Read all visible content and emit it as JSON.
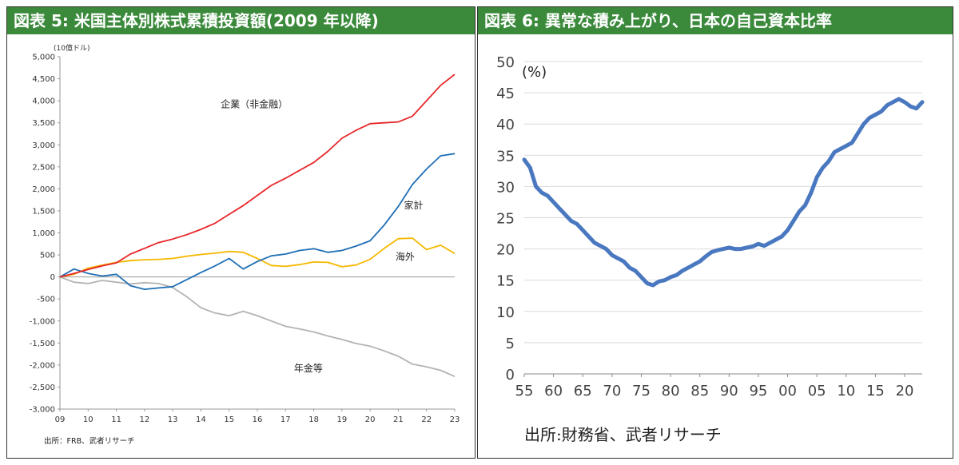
{
  "headers": {
    "left": "図表 5: 米国主体別株式累積投資額(2009 年以降)",
    "right": "図表 6: 異常な積み上がり、日本の自己資本比率"
  },
  "sources": {
    "left": "出所：FRB、武者リサーチ",
    "right": "出所:財務省、武者リサーチ"
  },
  "chart_data": [
    {
      "type": "line",
      "unit_label": "(10億ドル)",
      "ylim": [
        -3000,
        5000
      ],
      "yticks": [
        5000,
        4500,
        4000,
        3500,
        3000,
        2500,
        2000,
        1500,
        1000,
        500,
        0,
        -500,
        -1000,
        -1500,
        -2000,
        -2500,
        -3000
      ],
      "ytick_labels": [
        "5,000",
        "4,500",
        "4,000",
        "3,500",
        "3,000",
        "2,500",
        "2,000",
        "1,500",
        "1,000",
        "500",
        "0",
        "-500",
        "-1,000",
        "-1,500",
        "-2,000",
        "-2,500",
        "-3,000"
      ],
      "xlim": [
        2009,
        2023
      ],
      "xticks": [
        2009,
        2010,
        2011,
        2012,
        2013,
        2014,
        2015,
        2016,
        2017,
        2018,
        2019,
        2020,
        2021,
        2022,
        2023
      ],
      "xtick_labels": [
        "09",
        "10",
        "11",
        "12",
        "13",
        "14",
        "15",
        "16",
        "17",
        "18",
        "19",
        "20",
        "21",
        "22",
        "23"
      ],
      "grid": false,
      "series": [
        {
          "name": "企業（非金融）",
          "color": "#e8262a",
          "x": [
            2009,
            2009.5,
            2010,
            2010.5,
            2011,
            2011.5,
            2012,
            2012.5,
            2013,
            2013.5,
            2014,
            2014.5,
            2015,
            2015.5,
            2016,
            2016.5,
            2017,
            2017.5,
            2018,
            2018.5,
            2019,
            2019.5,
            2020,
            2020.5,
            2021,
            2021.5,
            2022,
            2022.5,
            2023
          ],
          "values": [
            0,
            80,
            170,
            250,
            320,
            520,
            650,
            780,
            860,
            960,
            1080,
            1220,
            1420,
            1620,
            1850,
            2080,
            2240,
            2420,
            2600,
            2850,
            3150,
            3330,
            3480,
            3500,
            3520,
            3650,
            4000,
            4350,
            4600
          ]
        },
        {
          "name": "家計",
          "color": "#1f6fb5",
          "x": [
            2009,
            2009.5,
            2010,
            2010.5,
            2011,
            2011.5,
            2012,
            2012.5,
            2013,
            2013.5,
            2014,
            2014.5,
            2015,
            2015.5,
            2016,
            2016.5,
            2017,
            2017.5,
            2018,
            2018.5,
            2019,
            2019.5,
            2020,
            2020.5,
            2021,
            2021.5,
            2022,
            2022.5,
            2023
          ],
          "values": [
            0,
            180,
            80,
            20,
            60,
            -200,
            -280,
            -250,
            -220,
            -60,
            100,
            250,
            420,
            180,
            350,
            480,
            520,
            600,
            640,
            560,
            600,
            700,
            820,
            1180,
            1600,
            2100,
            2450,
            2750,
            2800
          ]
        },
        {
          "name": "海外",
          "color": "#f5b800",
          "x": [
            2009,
            2009.5,
            2010,
            2010.5,
            2011,
            2011.5,
            2012,
            2012.5,
            2013,
            2013.5,
            2014,
            2014.5,
            2015,
            2015.5,
            2016,
            2016.5,
            2017,
            2017.5,
            2018,
            2018.5,
            2019,
            2019.5,
            2020,
            2020.5,
            2021,
            2021.5,
            2022,
            2022.5,
            2023
          ],
          "values": [
            0,
            60,
            200,
            270,
            330,
            370,
            390,
            400,
            420,
            470,
            510,
            540,
            580,
            560,
            420,
            260,
            240,
            280,
            340,
            330,
            230,
            270,
            400,
            650,
            870,
            880,
            620,
            720,
            530
          ]
        },
        {
          "name": "年金等",
          "color": "#b3b3b3",
          "x": [
            2009,
            2009.5,
            2010,
            2010.5,
            2011,
            2011.5,
            2012,
            2012.5,
            2013,
            2013.5,
            2014,
            2014.5,
            2015,
            2015.5,
            2016,
            2016.5,
            2017,
            2017.5,
            2018,
            2018.5,
            2019,
            2019.5,
            2020,
            2020.5,
            2021,
            2021.5,
            2022,
            2022.5,
            2023
          ],
          "values": [
            0,
            -120,
            -150,
            -80,
            -120,
            -160,
            -130,
            -150,
            -240,
            -450,
            -700,
            -820,
            -880,
            -780,
            -880,
            -1000,
            -1120,
            -1180,
            -1250,
            -1340,
            -1420,
            -1510,
            -1570,
            -1680,
            -1800,
            -1980,
            -2040,
            -2120,
            -2260
          ]
        }
      ]
    },
    {
      "type": "line",
      "unit_label": "(%)",
      "ylim": [
        0,
        50
      ],
      "yticks": [
        0,
        5,
        10,
        15,
        20,
        25,
        30,
        35,
        40,
        45,
        50
      ],
      "ytick_labels": [
        "0",
        "5",
        "10",
        "15",
        "20",
        "25",
        "30",
        "35",
        "40",
        "45",
        "50"
      ],
      "xlim": [
        1955,
        2023
      ],
      "xticks": [
        1955,
        1960,
        1965,
        1970,
        1975,
        1980,
        1985,
        1990,
        1995,
        2000,
        2005,
        2010,
        2015,
        2020
      ],
      "xtick_labels": [
        "55",
        "60",
        "65",
        "70",
        "75",
        "80",
        "85",
        "90",
        "95",
        "00",
        "05",
        "10",
        "15",
        "20"
      ],
      "grid": true,
      "series": [
        {
          "name": "",
          "color": "#4a78c0",
          "x": [
            1955,
            1956,
            1957,
            1958,
            1959,
            1960,
            1961,
            1962,
            1963,
            1964,
            1965,
            1966,
            1967,
            1968,
            1969,
            1970,
            1971,
            1972,
            1973,
            1974,
            1975,
            1976,
            1977,
            1978,
            1979,
            1980,
            1981,
            1982,
            1983,
            1984,
            1985,
            1986,
            1987,
            1988,
            1989,
            1990,
            1991,
            1992,
            1993,
            1994,
            1995,
            1996,
            1997,
            1998,
            1999,
            2000,
            2001,
            2002,
            2003,
            2004,
            2005,
            2006,
            2007,
            2008,
            2009,
            2010,
            2011,
            2012,
            2013,
            2014,
            2015,
            2016,
            2017,
            2018,
            2019,
            2020,
            2021,
            2022,
            2023
          ],
          "values": [
            34.3,
            33.0,
            30.0,
            29.0,
            28.5,
            27.5,
            26.5,
            25.5,
            24.5,
            24.0,
            23.0,
            22.0,
            21.0,
            20.5,
            20.0,
            19.0,
            18.5,
            18.0,
            17.0,
            16.5,
            15.5,
            14.5,
            14.2,
            14.8,
            15.0,
            15.5,
            15.8,
            16.5,
            17.0,
            17.5,
            18.0,
            18.8,
            19.5,
            19.8,
            20.0,
            20.2,
            20.0,
            20.0,
            20.2,
            20.4,
            20.8,
            20.5,
            21.0,
            21.5,
            22.0,
            23.0,
            24.5,
            26.0,
            27.0,
            29.0,
            31.5,
            33.0,
            34.0,
            35.5,
            36.0,
            36.5,
            37.0,
            38.5,
            40.0,
            41.0,
            41.5,
            42.0,
            43.0,
            43.5,
            44.0,
            43.5,
            42.8,
            42.5,
            43.5
          ]
        }
      ]
    }
  ]
}
